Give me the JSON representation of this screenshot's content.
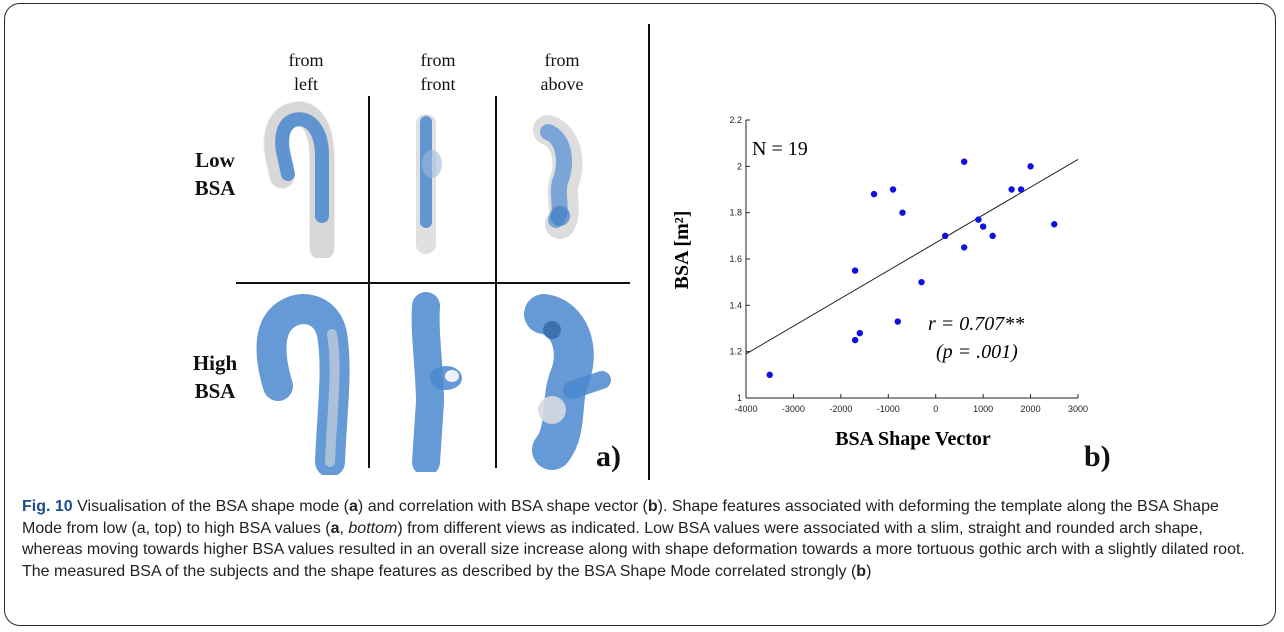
{
  "panel_a": {
    "columns": [
      "from\nleft",
      "from\nfront",
      "from\nabove"
    ],
    "rows": [
      "Low\nBSA",
      "High\nBSA"
    ],
    "panel_letter": "a)"
  },
  "panel_b": {
    "panel_letter": "b)"
  },
  "chart_data": {
    "type": "scatter",
    "xlabel": "BSA Shape Vector",
    "ylabel": "BSA [m²]",
    "xlim": [
      -4000,
      3000
    ],
    "ylim": [
      1,
      2.2
    ],
    "x_ticks": [
      -4000,
      -3000,
      -2000,
      -1000,
      0,
      1000,
      2000,
      3000
    ],
    "y_ticks": [
      1,
      1.2,
      1.4,
      1.6,
      1.8,
      2,
      2.2
    ],
    "annotation_n": "N = 19",
    "annotation_r": "r = 0.707**",
    "annotation_p": "(p = .001)",
    "points": [
      {
        "x": -3500,
        "y": 1.1
      },
      {
        "x": -1700,
        "y": 1.25
      },
      {
        "x": -1600,
        "y": 1.28
      },
      {
        "x": -1700,
        "y": 1.55
      },
      {
        "x": -1300,
        "y": 1.88
      },
      {
        "x": -900,
        "y": 1.9
      },
      {
        "x": -700,
        "y": 1.8
      },
      {
        "x": -800,
        "y": 1.33
      },
      {
        "x": -300,
        "y": 1.5
      },
      {
        "x": 200,
        "y": 1.7
      },
      {
        "x": 600,
        "y": 1.65
      },
      {
        "x": 600,
        "y": 2.02
      },
      {
        "x": 900,
        "y": 1.77
      },
      {
        "x": 1000,
        "y": 1.74
      },
      {
        "x": 1200,
        "y": 1.7
      },
      {
        "x": 1600,
        "y": 1.9
      },
      {
        "x": 1800,
        "y": 1.9
      },
      {
        "x": 2000,
        "y": 2.0
      },
      {
        "x": 2500,
        "y": 1.75
      }
    ],
    "fit_line": {
      "x": [
        -4000,
        3000
      ],
      "y": [
        1.19,
        2.03
      ]
    },
    "marker_color": "#1010e0",
    "grid": false
  },
  "caption": {
    "fig_label": "Fig. 10",
    "text_1": " Visualisation of the BSA shape mode (",
    "b1": "a",
    "text_2": ") and correlation with BSA shape vector (",
    "b2": "b",
    "text_3": "). Shape features associated with deforming the template along the BSA Shape Mode from low (a, top) to high BSA values (",
    "b3": "a",
    "text_4": ", ",
    "i1": "bottom",
    "text_5": ") from different views as indicated. Low BSA values were associated with a slim, straight and rounded arch shape, whereas moving towards higher BSA values resulted in an overall size increase along with shape deformation towards a more tortuous gothic arch with a slightly dilated root. The measured BSA of the subjects and the shape features as described by the BSA Shape Mode correlated strongly (",
    "b4": "b",
    "text_6": ")"
  }
}
